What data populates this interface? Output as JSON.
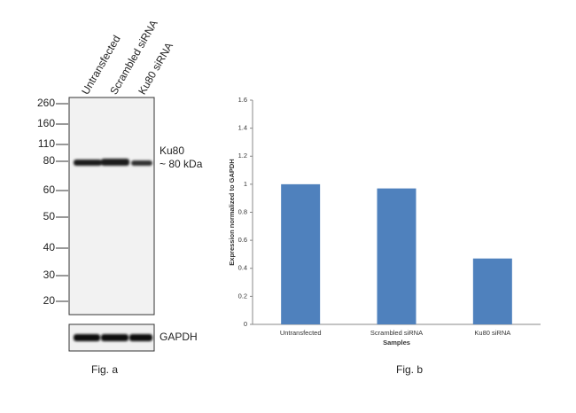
{
  "blot": {
    "lanes": [
      "Untransfected",
      "Scrambled siRNA",
      "Ku80 siRNA"
    ],
    "markers": [
      "260",
      "160",
      "110",
      "80",
      "60",
      "50",
      "40",
      "30",
      "20"
    ],
    "target": "Ku80",
    "target_size": "~ 80 kDa",
    "control": "GAPDH",
    "caption": "Fig. a"
  },
  "chart_data": {
    "type": "bar",
    "categories": [
      "Untransfected",
      "Scrambled siRNA",
      "Ku80 siRNA"
    ],
    "values": [
      1,
      0.97,
      0.47
    ],
    "color": "#4f81bd",
    "ylim": [
      0,
      1.6
    ],
    "yticks": [
      0,
      0.2,
      0.4,
      0.6,
      0.8,
      1,
      1.2,
      1.4,
      1.6
    ],
    "ylabel": "Expression normalized to GAPDH",
    "xlabel": "Samples",
    "caption": "Fig. b"
  }
}
